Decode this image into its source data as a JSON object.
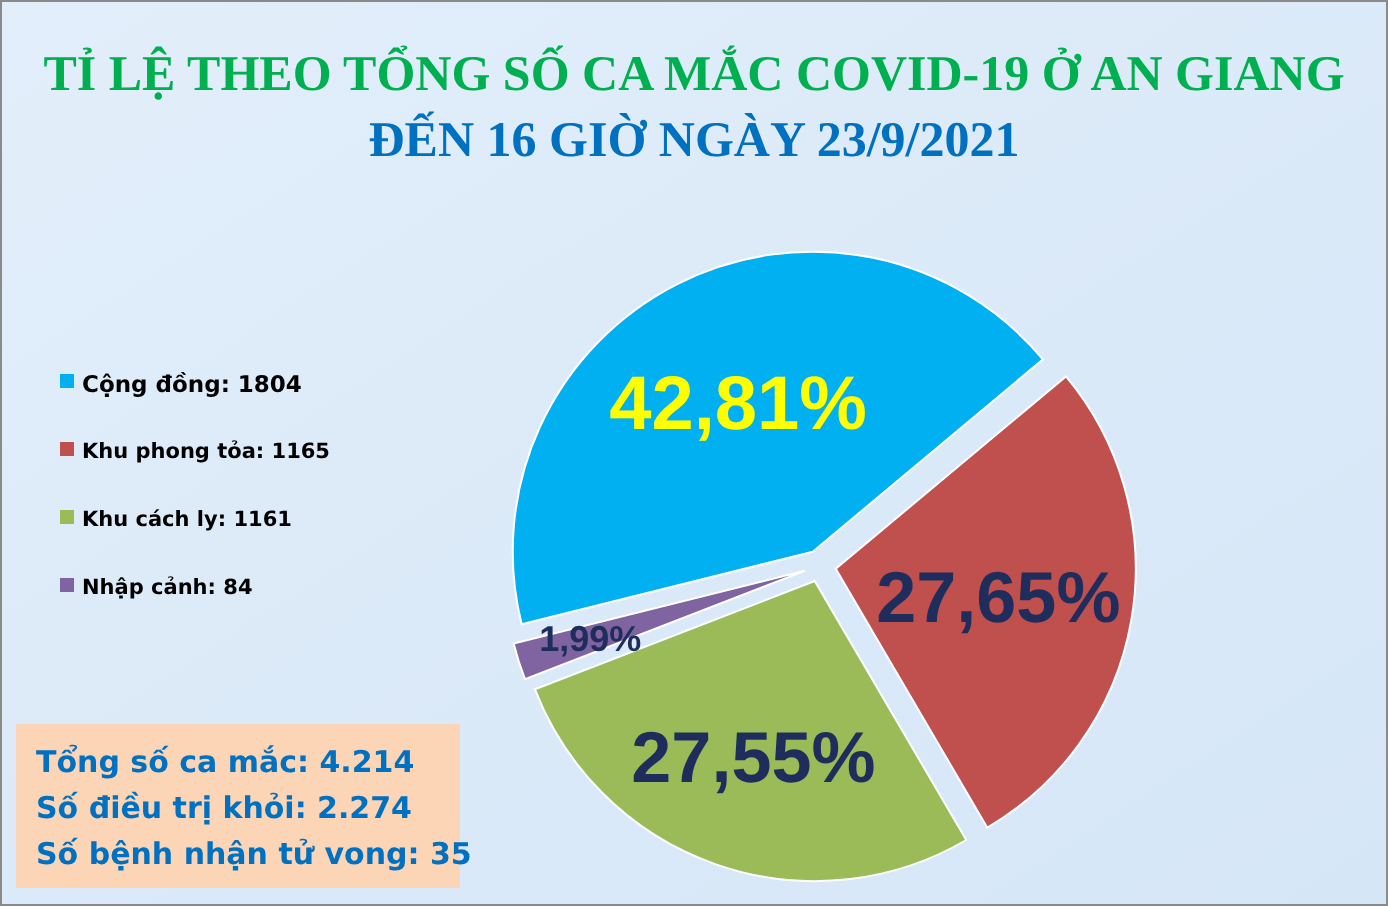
{
  "chart_data": {
    "type": "pie",
    "title": "TỈ LỆ THEO TỔNG SỐ CA MẮC COVID-19 Ở AN GIANG",
    "subtitle": "ĐẾN 16 GIỜ NGÀY 23/9/2021",
    "categories": [
      "Cộng đồng: 1804",
      "Khu phong tỏa: 1165",
      "Khu cách ly: 1161",
      "Nhập cảnh: 84"
    ],
    "values": [
      42.81,
      27.65,
      27.55,
      1.99
    ],
    "colors": [
      "#00b0f0",
      "#c0504d",
      "#9bbb59",
      "#8064a2"
    ],
    "value_labels": [
      "42,81%",
      "27,65%",
      "27,55%",
      "1,99%"
    ],
    "legend": "left",
    "annotations": [
      "Tổng số ca mắc: 4.214",
      "Số điều trị khỏi: 2.274",
      "Số bệnh nhận tử vong: 35"
    ]
  }
}
